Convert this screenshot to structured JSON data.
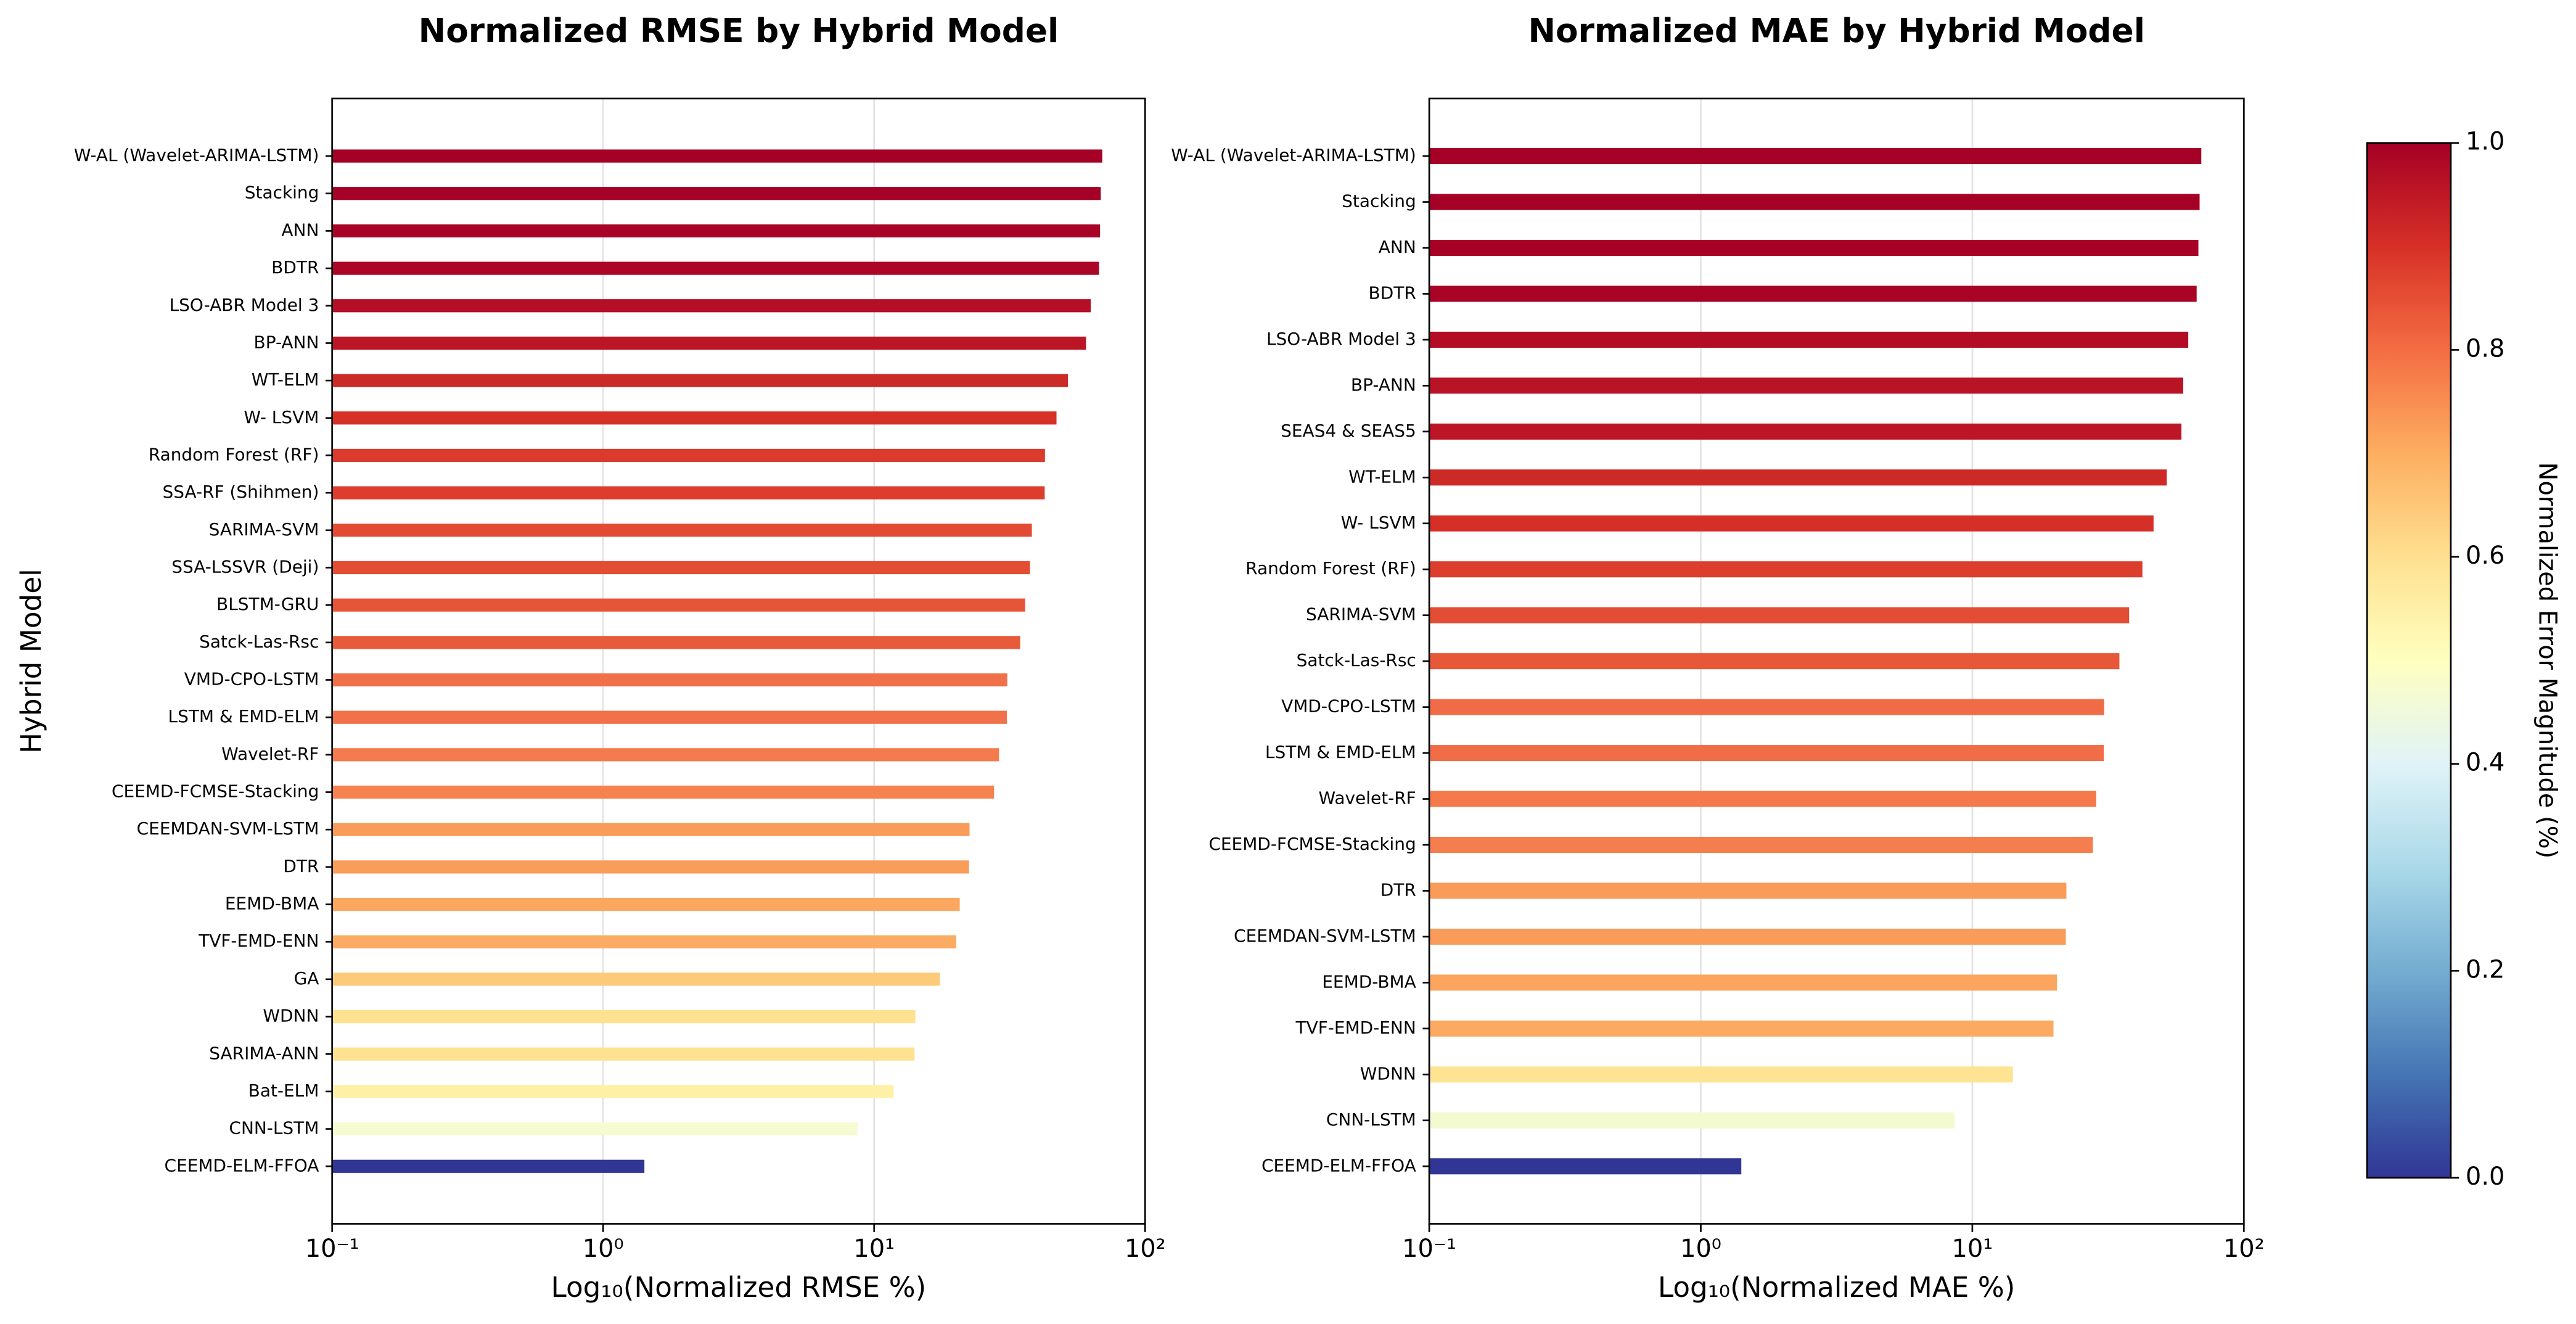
{
  "chart_data": [
    {
      "type": "barh",
      "title": "Normalized RMSE by Hybrid Model",
      "xlabel": "Log₁₀(Normalized RMSE %)",
      "ylabel": "Hybrid Model",
      "log_x": true,
      "grid": true,
      "xlim": [
        0.1,
        100
      ],
      "xticks": [
        {
          "value": 0.1,
          "label": "10⁻¹"
        },
        {
          "value": 1,
          "label": "10⁰"
        },
        {
          "value": 10,
          "label": "10¹"
        },
        {
          "value": 100,
          "label": "10²"
        }
      ],
      "categories": [
        "W-AL (Wavelet-ARIMA-LSTM)",
        "Stacking",
        "ANN",
        "BDTR",
        "LSO-ABR Model 3",
        "BP-ANN",
        "WT-ELM",
        "W- LSVM",
        "Random Forest (RF)",
        "SSA-RF (Shihmen)",
        "SARIMA-SVM",
        "SSA-LSSVR (Deji)",
        "BLSTM-GRU",
        "Satck-Las-Rsc",
        "VMD-CPO-LSTM",
        "LSTM & EMD-ELM",
        "Wavelet-RF",
        "CEEMD-FCMSE-Stacking",
        "CEEMDAN-SVM-LSTM",
        "DTR",
        "EEMD-BMA",
        "TVF-EMD-ENN",
        "GA",
        "WDNN",
        "SARIMA-ANN",
        "Bat-ELM",
        "CNN-LSTM",
        "CEEMD-ELM-FFOA"
      ],
      "values": [
        69.5,
        68.6,
        68.2,
        67.6,
        63,
        60.5,
        51.9,
        47.1,
        42.7,
        42.6,
        38.2,
        37.6,
        36.1,
        34.6,
        31,
        30.9,
        28.9,
        27.7,
        22.5,
        22.4,
        20.7,
        20.1,
        17.5,
        14.2,
        14.1,
        11.8,
        8.7,
        1.42
      ],
      "colors": [
        "#a50026",
        "#a50026",
        "#a80427",
        "#ab0626",
        "#b40f26",
        "#bb1526",
        "#cc2a27",
        "#d73027",
        "#db3b2d",
        "#dd3d2d",
        "#e24a33",
        "#e34d34",
        "#e65538",
        "#e85b3a",
        "#f0704a",
        "#f0714a",
        "#f47b4d",
        "#f6834f",
        "#f99c5a",
        "#f99d5a",
        "#fba75f",
        "#fcac62",
        "#fdca79",
        "#fee191",
        "#fee292",
        "#fef0a6",
        "#f6fbd1",
        "#313695"
      ]
    },
    {
      "type": "barh",
      "title": "Normalized MAE by Hybrid Model",
      "xlabel": "Log₁₀(Normalized MAE %)",
      "log_x": true,
      "grid": true,
      "xlim": [
        0.1,
        100
      ],
      "xticks": [
        {
          "value": 0.1,
          "label": "10⁻¹"
        },
        {
          "value": 1,
          "label": "10⁰"
        },
        {
          "value": 10,
          "label": "10¹"
        },
        {
          "value": 100,
          "label": "10²"
        }
      ],
      "categories": [
        "W-AL (Wavelet-ARIMA-LSTM)",
        "Stacking",
        "ANN",
        "BDTR",
        "LSO-ABR Model 3",
        "BP-ANN",
        "SEAS4 & SEAS5",
        "WT-ELM",
        "W- LSVM",
        "Random Forest (RF)",
        "SARIMA-SVM",
        "Satck-Las-Rsc",
        "VMD-CPO-LSTM",
        "LSTM & EMD-ELM",
        "Wavelet-RF",
        "CEEMD-FCMSE-Stacking",
        "DTR",
        "CEEMDAN-SVM-LSTM",
        "EEMD-BMA",
        "TVF-EMD-ENN",
        "WDNN",
        "CNN-LSTM",
        "CEEMD-ELM-FFOA"
      ],
      "values": [
        69.7,
        68.7,
        68,
        67,
        62.4,
        59.8,
        58.9,
        52,
        46.5,
        42.3,
        37.8,
        34.8,
        30.6,
        30.5,
        28.6,
        27.8,
        22.2,
        22.1,
        20.5,
        19.9,
        14.1,
        8.6,
        1.41
      ],
      "colors": [
        "#a50026",
        "#a50026",
        "#a70226",
        "#a90426",
        "#b30d26",
        "#b91326",
        "#bb1526",
        "#cc2a27",
        "#d62f27",
        "#dc3d2d",
        "#e34d34",
        "#e75838",
        "#f06c47",
        "#f06d47",
        "#f47a4c",
        "#f57e4e",
        "#f99b59",
        "#f99c59",
        "#fba55e",
        "#fcaa61",
        "#fee393",
        "#f4fad0",
        "#313695"
      ]
    }
  ],
  "colorbar": {
    "label": "Normalized Error Magnitude (%)",
    "lim": [
      0,
      1
    ],
    "ticks": [
      {
        "value": 0,
        "label": "0.0"
      },
      {
        "value": 0.2,
        "label": "0.2"
      },
      {
        "value": 0.4,
        "label": "0.4"
      },
      {
        "value": 0.6,
        "label": "0.6"
      },
      {
        "value": 0.8,
        "label": "0.8"
      },
      {
        "value": 1,
        "label": "1.0"
      }
    ],
    "colormap": [
      "#313695",
      "#4575b4",
      "#74add1",
      "#abd9e9",
      "#e0f3f8",
      "#ffffbf",
      "#fee090",
      "#fdae61",
      "#f46d43",
      "#d73027",
      "#a50026"
    ]
  }
}
